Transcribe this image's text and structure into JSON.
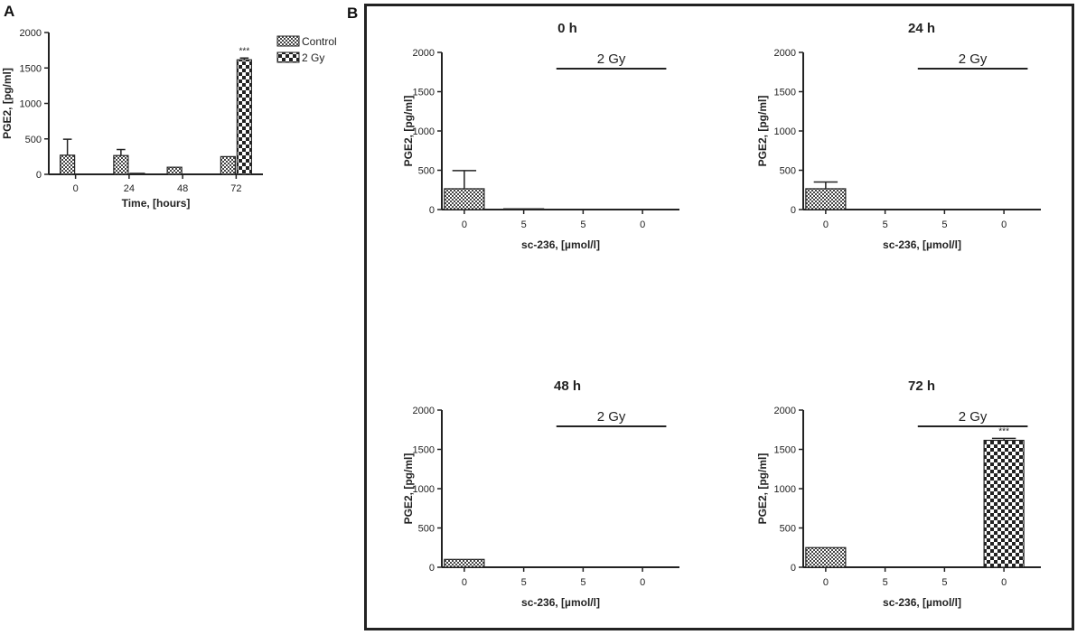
{
  "panels": {
    "a": "A",
    "b": "B"
  },
  "colors": {
    "axis": "#222222",
    "bar_stroke": "#222222",
    "frame": "#222222",
    "background": "#ffffff"
  },
  "chart_data": [
    {
      "id": "A",
      "type": "bar",
      "title": "",
      "xlabel": "Time, [hours]",
      "ylabel": "PGE2, [pg/ml]",
      "ylim": [
        0,
        2000
      ],
      "yticks": [
        "0",
        "500",
        "1000",
        "1500",
        "2000"
      ],
      "categories": [
        "0",
        "24",
        "48",
        "72"
      ],
      "legend": {
        "position": "top-right",
        "entries": [
          "Control",
          "2 Gy"
        ]
      },
      "series": [
        {
          "name": "Control",
          "pattern": "fine-checker",
          "values": [
            270,
            265,
            100,
            250
          ],
          "errors": [
            225,
            85,
            0,
            0
          ]
        },
        {
          "name": "2 Gy",
          "pattern": "coarse-checker",
          "values": [
            0,
            15,
            0,
            1615
          ],
          "errors": [
            0,
            0,
            0,
            25
          ]
        }
      ],
      "annotations": [
        {
          "category": "72",
          "series": "2 Gy",
          "text": "***"
        }
      ]
    },
    {
      "id": "B-0h",
      "type": "bar",
      "title": "0 h",
      "xlabel": "sc-236, [µmol/l]",
      "ylabel": "PGE2, [pg/ml]",
      "ylim": [
        0,
        2000
      ],
      "yticks": [
        "0",
        "500",
        "1000",
        "1500",
        "2000"
      ],
      "categories": [
        "0",
        "5",
        "5",
        "0"
      ],
      "treatment_label": "2 Gy",
      "treatment_span": [
        2,
        3
      ],
      "bars": [
        {
          "value": 265,
          "error": 230,
          "pattern": "fine-checker"
        },
        {
          "value": 10,
          "error": 0,
          "pattern": "fine-checker"
        },
        {
          "value": 0,
          "error": 0,
          "pattern": "coarse-checker"
        },
        {
          "value": 0,
          "error": 0,
          "pattern": "coarse-checker"
        }
      ],
      "annotations": []
    },
    {
      "id": "B-24h",
      "type": "bar",
      "title": "24 h",
      "xlabel": "sc-236, [µmol/l]",
      "ylabel": "PGE2, [pg/ml]",
      "ylim": [
        0,
        2000
      ],
      "yticks": [
        "0",
        "500",
        "1000",
        "1500",
        "2000"
      ],
      "categories": [
        "0",
        "5",
        "5",
        "0"
      ],
      "treatment_label": "2 Gy",
      "treatment_span": [
        2,
        3
      ],
      "bars": [
        {
          "value": 265,
          "error": 85,
          "pattern": "fine-checker"
        },
        {
          "value": 0,
          "error": 0,
          "pattern": "fine-checker"
        },
        {
          "value": 0,
          "error": 0,
          "pattern": "coarse-checker"
        },
        {
          "value": 0,
          "error": 0,
          "pattern": "coarse-checker"
        }
      ],
      "annotations": []
    },
    {
      "id": "B-48h",
      "type": "bar",
      "title": "48 h",
      "xlabel": "sc-236, [µmol/l]",
      "ylabel": "PGE2, [pg/ml]",
      "ylim": [
        0,
        2000
      ],
      "yticks": [
        "0",
        "500",
        "1000",
        "1500",
        "2000"
      ],
      "categories": [
        "0",
        "5",
        "5",
        "0"
      ],
      "treatment_label": "2 Gy",
      "treatment_span": [
        2,
        3
      ],
      "bars": [
        {
          "value": 100,
          "error": 0,
          "pattern": "fine-checker"
        },
        {
          "value": 0,
          "error": 0,
          "pattern": "fine-checker"
        },
        {
          "value": 0,
          "error": 0,
          "pattern": "coarse-checker"
        },
        {
          "value": 0,
          "error": 0,
          "pattern": "coarse-checker"
        }
      ],
      "annotations": []
    },
    {
      "id": "B-72h",
      "type": "bar",
      "title": "72 h",
      "xlabel": "sc-236, [µmol/l]",
      "ylabel": "PGE2, [pg/ml]",
      "ylim": [
        0,
        2000
      ],
      "yticks": [
        "0",
        "500",
        "1000",
        "1500",
        "2000"
      ],
      "categories": [
        "0",
        "5",
        "5",
        "0"
      ],
      "treatment_label": "2 Gy",
      "treatment_span": [
        2,
        3
      ],
      "bars": [
        {
          "value": 250,
          "error": 0,
          "pattern": "fine-checker"
        },
        {
          "value": 0,
          "error": 0,
          "pattern": "fine-checker"
        },
        {
          "value": 0,
          "error": 0,
          "pattern": "coarse-checker"
        },
        {
          "value": 1615,
          "error": 25,
          "pattern": "coarse-checker"
        }
      ],
      "annotations": [
        {
          "bar": 3,
          "text": "***"
        }
      ]
    }
  ]
}
